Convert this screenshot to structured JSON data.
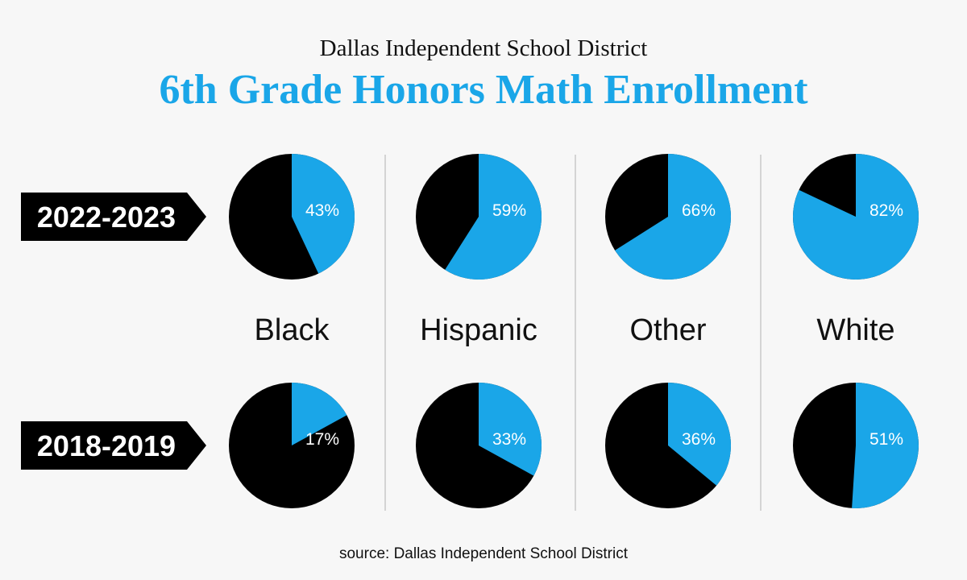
{
  "header": {
    "supertitle": "Dallas Independent School District",
    "title": "6th Grade Honors Math Enrollment"
  },
  "source": "source: Dallas Independent School District",
  "colors": {
    "accent": "#1aa6e8",
    "remainder": "#000000",
    "divider": "#c8c8c8"
  },
  "chart_data": {
    "type": "pie",
    "title": "6th Grade Honors Math Enrollment",
    "groups": [
      "Black",
      "Hispanic",
      "Other",
      "White"
    ],
    "series": [
      {
        "name": "2022-2023",
        "values": [
          43,
          59,
          66,
          82
        ],
        "labels": [
          "43%",
          "59%",
          "66%",
          "82%"
        ]
      },
      {
        "name": "2018-2019",
        "values": [
          17,
          33,
          36,
          51
        ],
        "labels": [
          "17%",
          "33%",
          "36%",
          "51%"
        ]
      }
    ],
    "unit": "%"
  }
}
